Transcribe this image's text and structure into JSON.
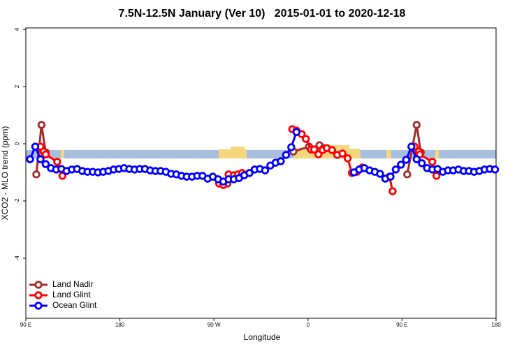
{
  "chart_data": {
    "type": "line",
    "title": "7.5N-12.5N January (Ver 10)   2015-01-01 to 2020-12-18",
    "xlabel": "Longitude",
    "ylabel": "XCO2 - MLO trend (ppm)",
    "xlim": [
      90,
      540
    ],
    "xticks": [
      {
        "value": 90,
        "label": "90 E"
      },
      {
        "value": 180,
        "label": "180"
      },
      {
        "value": 270,
        "label": "90 W"
      },
      {
        "value": 360,
        "label": "0"
      },
      {
        "value": 450,
        "label": "90 E"
      },
      {
        "value": 540,
        "label": "180"
      }
    ],
    "ylim": [
      -6.1,
      4.05
    ],
    "yticks": [
      -4,
      -2,
      0,
      2,
      4
    ],
    "legend": "bottom-left",
    "series": [
      {
        "name": "Land Nadir",
        "color": "#a52a2a",
        "x": [
          100,
          105,
          109,
          null,
          283,
          287,
          null,
          346,
          361,
          365,
          371,
          375,
          null,
          455,
          464,
          468
        ],
        "values": [
          -1.07,
          0.66,
          -0.3,
          null,
          -1.39,
          -1.15,
          null,
          -0.27,
          -0.1,
          -0.2,
          -0.05,
          -0.15,
          null,
          -1.07,
          0.66,
          -0.3
        ]
      },
      {
        "name": "Land Glint",
        "color": "#ff0000",
        "x": [
          104,
          107,
          109,
          120,
          125,
          null,
          275,
          279,
          284,
          289,
          293,
          297,
          null,
          345,
          349,
          354,
          358,
          363,
          366,
          370,
          374,
          378,
          383,
          388,
          393,
          398,
          402,
          407,
          412,
          null,
          438,
          441,
          null,
          462,
          466,
          467,
          479,
          483
        ],
        "values": [
          -0.1,
          -0.27,
          -0.37,
          -0.63,
          -1.12,
          null,
          -1.39,
          -1.44,
          -1.07,
          -1.1,
          -1.07,
          -1.02,
          null,
          0.51,
          0.46,
          0.34,
          0.17,
          -0.2,
          -0.2,
          -0.37,
          -0.22,
          -0.15,
          -0.22,
          -0.39,
          -0.34,
          -0.51,
          -1.02,
          -0.98,
          -0.83,
          null,
          -1.15,
          -1.66,
          null,
          -0.1,
          -0.27,
          -0.37,
          -0.63,
          -1.12
        ]
      },
      {
        "name": "Ocean Glint",
        "color": "#0000ff",
        "x": [
          94,
          99,
          104,
          109,
          114,
          119,
          124,
          129,
          134,
          139,
          144,
          149,
          154,
          159,
          164,
          169,
          174,
          179,
          184,
          189,
          194,
          199,
          204,
          209,
          214,
          219,
          224,
          229,
          234,
          239,
          244,
          249,
          254,
          259,
          264,
          269,
          274,
          279,
          284,
          289,
          294,
          299,
          304,
          309,
          314,
          319,
          324,
          329,
          334,
          339,
          344,
          349,
          null,
          404,
          409,
          414,
          419,
          424,
          429,
          434,
          439,
          444,
          449,
          454,
          459,
          464,
          469,
          474,
          479,
          484,
          489,
          494,
          499,
          504,
          509,
          514,
          519,
          524,
          529,
          534,
          539
        ],
        "values": [
          -0.54,
          -0.1,
          -0.54,
          -0.71,
          -0.85,
          -0.9,
          -0.88,
          -0.95,
          -0.9,
          -0.88,
          -0.95,
          -0.98,
          -0.98,
          -1.0,
          -0.98,
          -0.95,
          -0.9,
          -0.88,
          -0.85,
          -0.88,
          -0.9,
          -0.88,
          -0.88,
          -0.93,
          -0.95,
          -0.95,
          -0.98,
          -1.05,
          -1.07,
          -1.12,
          -1.15,
          -1.15,
          -1.12,
          -1.12,
          -1.22,
          -1.15,
          -1.24,
          -1.32,
          -1.24,
          -1.24,
          -1.2,
          -1.1,
          -1.02,
          -0.9,
          -0.88,
          -0.93,
          -0.76,
          -0.66,
          -0.61,
          -0.39,
          -0.12,
          0.41,
          null,
          -1.0,
          -0.9,
          -0.85,
          -0.93,
          -0.98,
          -1.05,
          -1.22,
          -1.15,
          -0.9,
          -0.73,
          -0.56,
          -0.1,
          -0.54,
          -0.68,
          -0.85,
          -0.9,
          -0.88,
          -0.98,
          -0.93,
          -0.93,
          -0.9,
          -0.95,
          -0.95,
          -0.98,
          -0.95,
          -0.9,
          -0.88,
          -0.9
        ]
      }
    ]
  }
}
